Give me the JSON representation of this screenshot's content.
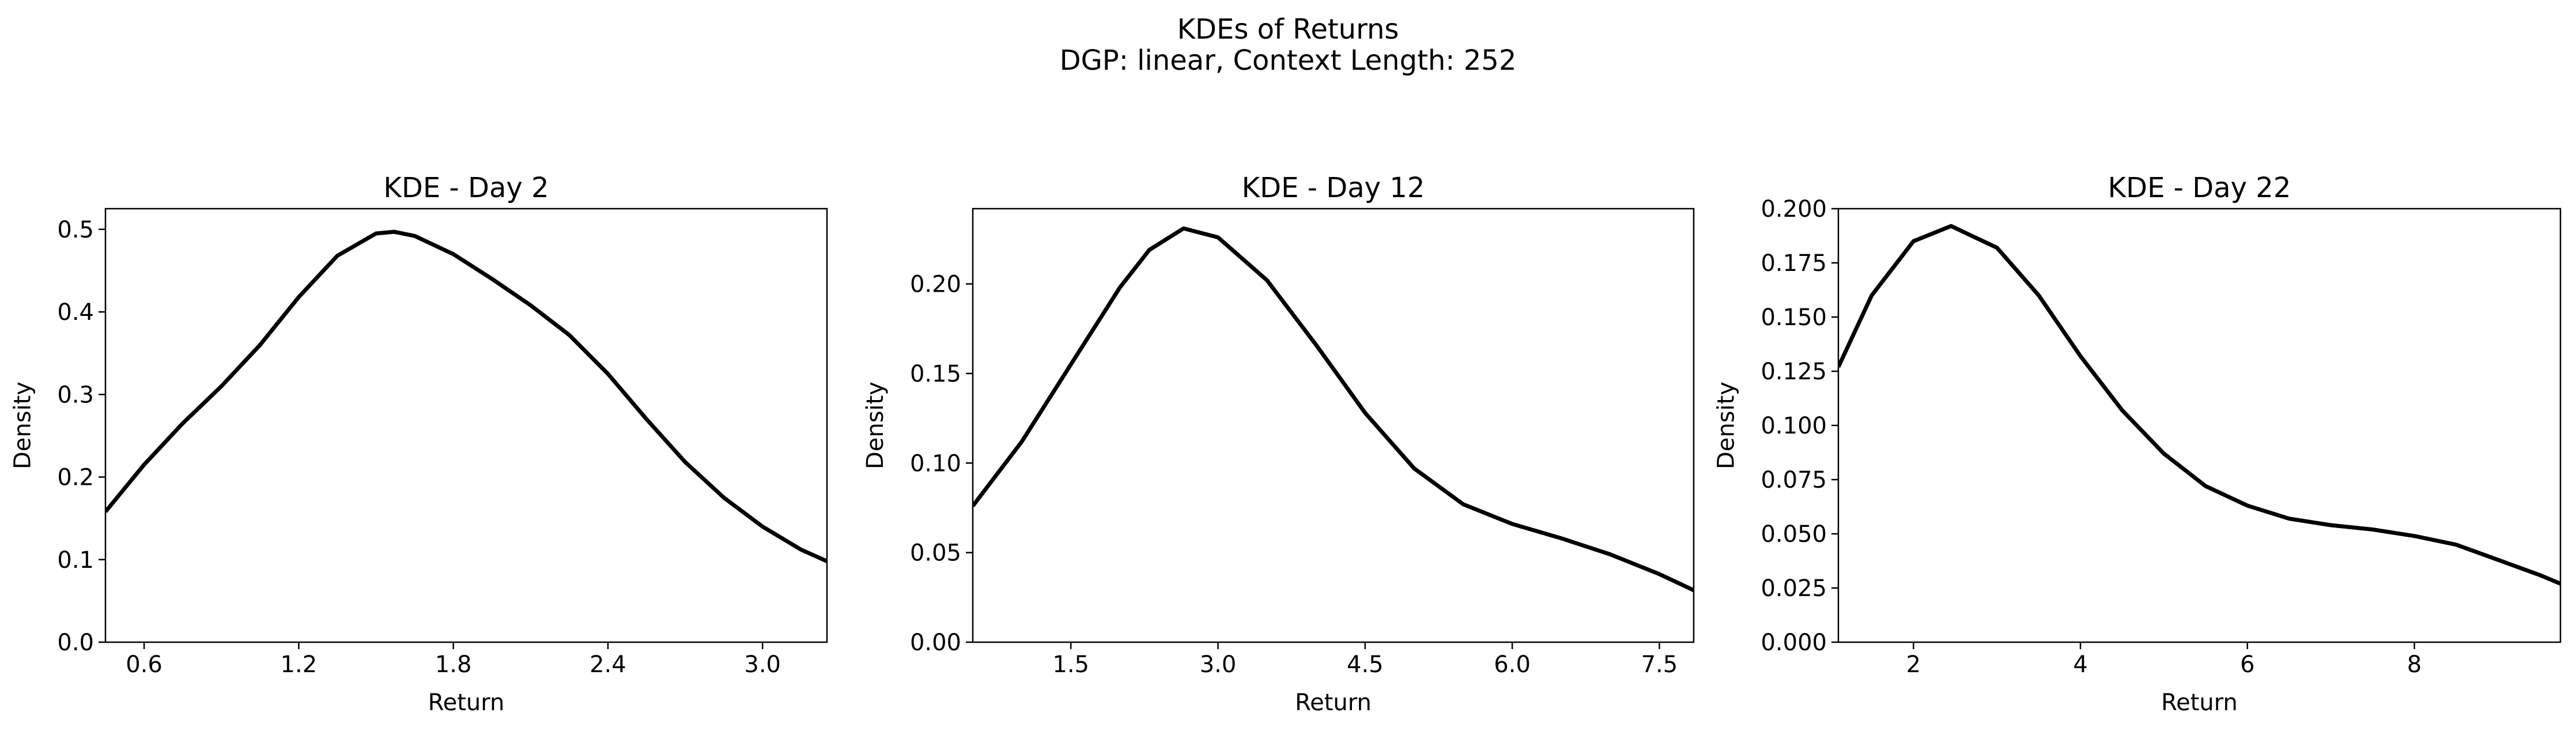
{
  "figure": {
    "title": "KDEs of Returns",
    "subtitle": "DGP: linear, Context Length: 252"
  },
  "chart_data": [
    {
      "type": "line",
      "title": "KDE - Day 2",
      "xlabel": "Return",
      "ylabel": "Density",
      "xlim": [
        0.45,
        3.25
      ],
      "ylim": [
        0.0,
        0.525
      ],
      "xticks": [
        0.6,
        1.2,
        1.8,
        2.4,
        3.0
      ],
      "xtick_labels": [
        "0.6",
        "1.2",
        "1.8",
        "2.4",
        "3.0"
      ],
      "yticks": [
        0.0,
        0.1,
        0.2,
        0.3,
        0.4,
        0.5
      ],
      "ytick_labels": [
        "0.0",
        "0.1",
        "0.2",
        "0.3",
        "0.4",
        "0.5"
      ],
      "line_color": "#000000",
      "series": [
        {
          "x": [
            0.45,
            0.6,
            0.75,
            0.9,
            1.05,
            1.2,
            1.35,
            1.5,
            1.57,
            1.65,
            1.8,
            1.95,
            2.1,
            2.25,
            2.4,
            2.55,
            2.7,
            2.85,
            3.0,
            3.15,
            3.25
          ],
          "y": [
            0.158,
            0.215,
            0.265,
            0.31,
            0.36,
            0.418,
            0.468,
            0.495,
            0.497,
            0.492,
            0.47,
            0.44,
            0.408,
            0.372,
            0.325,
            0.27,
            0.218,
            0.175,
            0.14,
            0.112,
            0.098
          ]
        }
      ]
    },
    {
      "type": "line",
      "title": "KDE - Day 12",
      "xlabel": "Return",
      "ylabel": "Density",
      "xlim": [
        0.5,
        7.85
      ],
      "ylim": [
        0.0,
        0.242
      ],
      "xticks": [
        1.5,
        3.0,
        4.5,
        6.0,
        7.5
      ],
      "xtick_labels": [
        "1.5",
        "3.0",
        "4.5",
        "6.0",
        "7.5"
      ],
      "yticks": [
        0.0,
        0.05,
        0.1,
        0.15,
        0.2
      ],
      "ytick_labels": [
        "0.00",
        "0.05",
        "0.10",
        "0.15",
        "0.20"
      ],
      "line_color": "#000000",
      "series": [
        {
          "x": [
            0.5,
            1.0,
            1.5,
            2.0,
            2.3,
            2.65,
            3.0,
            3.5,
            4.0,
            4.5,
            5.0,
            5.5,
            6.0,
            6.5,
            7.0,
            7.5,
            7.85
          ],
          "y": [
            0.076,
            0.112,
            0.155,
            0.198,
            0.219,
            0.231,
            0.226,
            0.202,
            0.166,
            0.128,
            0.097,
            0.077,
            0.066,
            0.058,
            0.049,
            0.038,
            0.029
          ]
        }
      ]
    },
    {
      "type": "line",
      "title": "KDE - Day 22",
      "xlabel": "Return",
      "ylabel": "Density",
      "xlim": [
        1.1,
        9.75
      ],
      "ylim": [
        0.0,
        0.2
      ],
      "xticks": [
        2,
        4,
        6,
        8
      ],
      "xtick_labels": [
        "2",
        "4",
        "6",
        "8"
      ],
      "yticks": [
        0.0,
        0.025,
        0.05,
        0.075,
        0.1,
        0.125,
        0.15,
        0.175,
        0.2
      ],
      "ytick_labels": [
        "0.000",
        "0.025",
        "0.050",
        "0.075",
        "0.100",
        "0.125",
        "0.150",
        "0.175",
        "0.200"
      ],
      "line_color": "#000000",
      "series": [
        {
          "x": [
            1.1,
            1.5,
            2.0,
            2.45,
            3.0,
            3.5,
            4.0,
            4.5,
            5.0,
            5.5,
            6.0,
            6.5,
            7.0,
            7.5,
            8.0,
            8.5,
            9.0,
            9.5,
            9.75
          ],
          "y": [
            0.127,
            0.16,
            0.185,
            0.192,
            0.182,
            0.16,
            0.132,
            0.107,
            0.087,
            0.072,
            0.063,
            0.057,
            0.054,
            0.052,
            0.049,
            0.045,
            0.038,
            0.031,
            0.027
          ]
        }
      ]
    }
  ]
}
